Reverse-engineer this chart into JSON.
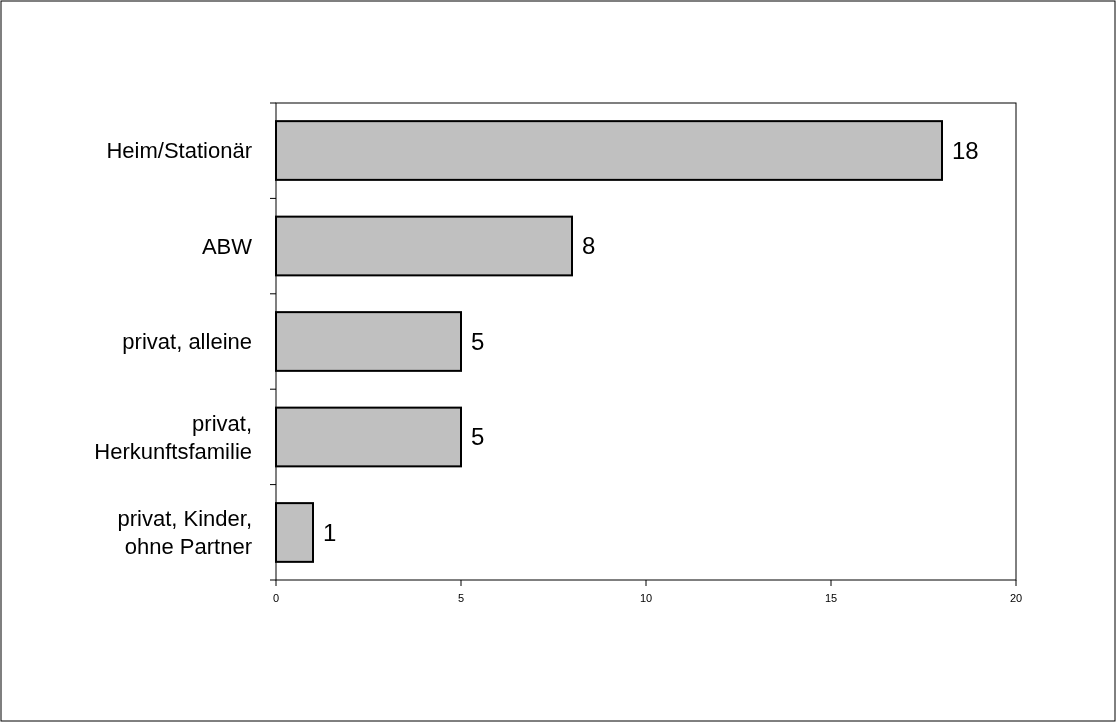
{
  "chart_data": {
    "type": "bar",
    "orientation": "horizontal",
    "categories": [
      "Heim/Stationär",
      "ABW",
      "privat, alleine",
      "privat,\nHerkunftsfamilie",
      "privat, Kinder,\nohne Partner"
    ],
    "values": [
      18,
      8,
      5,
      5,
      1
    ],
    "color": "#c0c0c0",
    "xlim": [
      0,
      20
    ],
    "xticks": [
      0,
      5,
      10,
      15,
      20
    ],
    "data_labels": true
  }
}
